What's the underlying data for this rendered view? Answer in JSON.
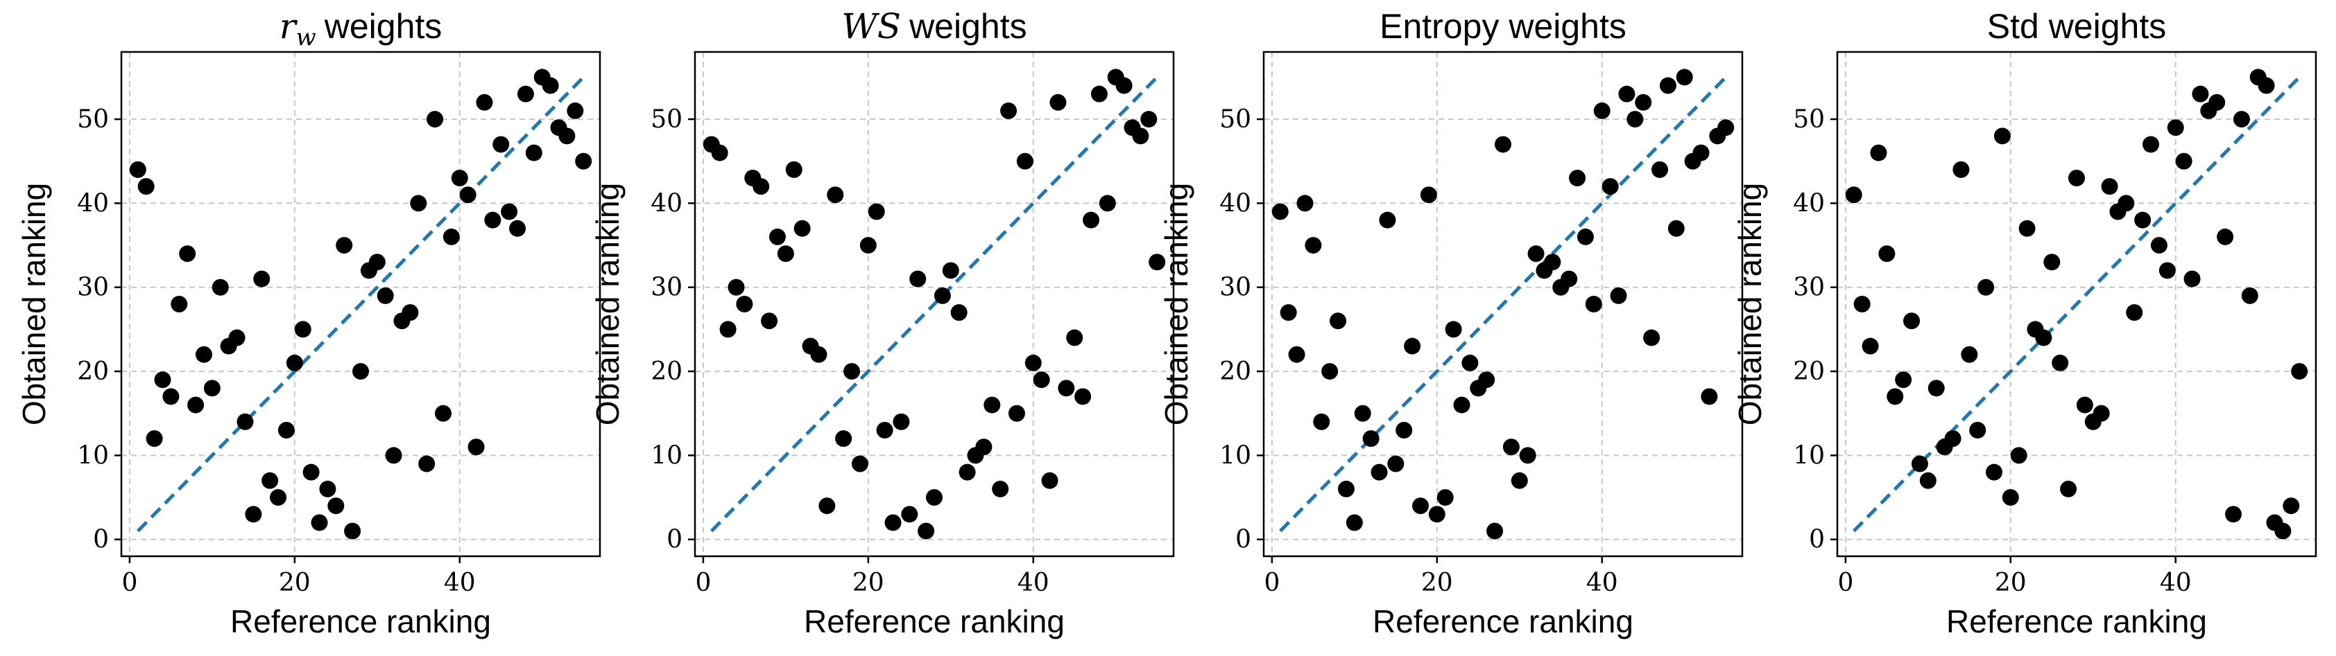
{
  "chart_data": [
    {
      "type": "scatter",
      "title": "weights",
      "title_math": "r",
      "title_math_sub": "w",
      "xlabel": "Reference ranking",
      "ylabel": "Obtained ranking",
      "xlim": [
        -1,
        57
      ],
      "ylim": [
        -2,
        58
      ],
      "xticks": [
        0,
        20,
        40
      ],
      "yticks": [
        0,
        10,
        20,
        30,
        40,
        50
      ],
      "reference_line": {
        "x": [
          1,
          55
        ],
        "y": [
          1,
          55
        ],
        "color": "#1f77b4",
        "style": "dashed"
      },
      "points": [
        {
          "x": 1,
          "y": 44
        },
        {
          "x": 2,
          "y": 42
        },
        {
          "x": 3,
          "y": 12
        },
        {
          "x": 4,
          "y": 19
        },
        {
          "x": 5,
          "y": 17
        },
        {
          "x": 6,
          "y": 28
        },
        {
          "x": 7,
          "y": 34
        },
        {
          "x": 8,
          "y": 16
        },
        {
          "x": 9,
          "y": 22
        },
        {
          "x": 10,
          "y": 18
        },
        {
          "x": 11,
          "y": 30
        },
        {
          "x": 12,
          "y": 23
        },
        {
          "x": 13,
          "y": 24
        },
        {
          "x": 14,
          "y": 14
        },
        {
          "x": 15,
          "y": 3
        },
        {
          "x": 16,
          "y": 31
        },
        {
          "x": 17,
          "y": 7
        },
        {
          "x": 18,
          "y": 5
        },
        {
          "x": 19,
          "y": 13
        },
        {
          "x": 20,
          "y": 21
        },
        {
          "x": 21,
          "y": 25
        },
        {
          "x": 22,
          "y": 8
        },
        {
          "x": 23,
          "y": 2
        },
        {
          "x": 24,
          "y": 6
        },
        {
          "x": 25,
          "y": 4
        },
        {
          "x": 26,
          "y": 35
        },
        {
          "x": 27,
          "y": 1
        },
        {
          "x": 28,
          "y": 20
        },
        {
          "x": 29,
          "y": 32
        },
        {
          "x": 30,
          "y": 33
        },
        {
          "x": 31,
          "y": 29
        },
        {
          "x": 32,
          "y": 10
        },
        {
          "x": 33,
          "y": 26
        },
        {
          "x": 34,
          "y": 27
        },
        {
          "x": 35,
          "y": 40
        },
        {
          "x": 36,
          "y": 9
        },
        {
          "x": 37,
          "y": 50
        },
        {
          "x": 38,
          "y": 15
        },
        {
          "x": 39,
          "y": 36
        },
        {
          "x": 40,
          "y": 43
        },
        {
          "x": 41,
          "y": 41
        },
        {
          "x": 42,
          "y": 11
        },
        {
          "x": 43,
          "y": 52
        },
        {
          "x": 44,
          "y": 38
        },
        {
          "x": 45,
          "y": 47
        },
        {
          "x": 46,
          "y": 39
        },
        {
          "x": 47,
          "y": 37
        },
        {
          "x": 48,
          "y": 53
        },
        {
          "x": 49,
          "y": 46
        },
        {
          "x": 50,
          "y": 55
        },
        {
          "x": 51,
          "y": 54
        },
        {
          "x": 52,
          "y": 49
        },
        {
          "x": 53,
          "y": 48
        },
        {
          "x": 54,
          "y": 51
        },
        {
          "x": 55,
          "y": 45
        }
      ]
    },
    {
      "type": "scatter",
      "title": "weights",
      "title_math": "WS",
      "title_math_sub": "",
      "xlabel": "Reference ranking",
      "ylabel": "Obtained ranking",
      "xlim": [
        -1,
        57
      ],
      "ylim": [
        -2,
        58
      ],
      "xticks": [
        0,
        20,
        40
      ],
      "yticks": [
        0,
        10,
        20,
        30,
        40,
        50
      ],
      "reference_line": {
        "x": [
          1,
          55
        ],
        "y": [
          1,
          55
        ],
        "color": "#1f77b4",
        "style": "dashed"
      },
      "points": [
        {
          "x": 1,
          "y": 47
        },
        {
          "x": 2,
          "y": 46
        },
        {
          "x": 3,
          "y": 25
        },
        {
          "x": 4,
          "y": 30
        },
        {
          "x": 5,
          "y": 28
        },
        {
          "x": 6,
          "y": 43
        },
        {
          "x": 7,
          "y": 42
        },
        {
          "x": 8,
          "y": 26
        },
        {
          "x": 9,
          "y": 36
        },
        {
          "x": 10,
          "y": 34
        },
        {
          "x": 11,
          "y": 44
        },
        {
          "x": 12,
          "y": 37
        },
        {
          "x": 13,
          "y": 23
        },
        {
          "x": 14,
          "y": 22
        },
        {
          "x": 15,
          "y": 4
        },
        {
          "x": 16,
          "y": 41
        },
        {
          "x": 17,
          "y": 12
        },
        {
          "x": 18,
          "y": 20
        },
        {
          "x": 19,
          "y": 9
        },
        {
          "x": 20,
          "y": 35
        },
        {
          "x": 21,
          "y": 39
        },
        {
          "x": 22,
          "y": 13
        },
        {
          "x": 23,
          "y": 2
        },
        {
          "x": 24,
          "y": 14
        },
        {
          "x": 25,
          "y": 3
        },
        {
          "x": 26,
          "y": 31
        },
        {
          "x": 27,
          "y": 1
        },
        {
          "x": 28,
          "y": 5
        },
        {
          "x": 29,
          "y": 29
        },
        {
          "x": 30,
          "y": 32
        },
        {
          "x": 31,
          "y": 27
        },
        {
          "x": 32,
          "y": 8
        },
        {
          "x": 33,
          "y": 10
        },
        {
          "x": 34,
          "y": 11
        },
        {
          "x": 35,
          "y": 16
        },
        {
          "x": 36,
          "y": 6
        },
        {
          "x": 37,
          "y": 51
        },
        {
          "x": 38,
          "y": 15
        },
        {
          "x": 39,
          "y": 45
        },
        {
          "x": 40,
          "y": 21
        },
        {
          "x": 41,
          "y": 19
        },
        {
          "x": 42,
          "y": 7
        },
        {
          "x": 43,
          "y": 52
        },
        {
          "x": 44,
          "y": 18
        },
        {
          "x": 45,
          "y": 24
        },
        {
          "x": 46,
          "y": 17
        },
        {
          "x": 47,
          "y": 38
        },
        {
          "x": 48,
          "y": 53
        },
        {
          "x": 49,
          "y": 40
        },
        {
          "x": 50,
          "y": 55
        },
        {
          "x": 51,
          "y": 54
        },
        {
          "x": 52,
          "y": 49
        },
        {
          "x": 53,
          "y": 48
        },
        {
          "x": 54,
          "y": 50
        },
        {
          "x": 55,
          "y": 33
        }
      ]
    },
    {
      "type": "scatter",
      "title": "Entropy weights",
      "title_math": "",
      "title_math_sub": "",
      "xlabel": "Reference ranking",
      "ylabel": "Obtained ranking",
      "xlim": [
        -1,
        57
      ],
      "ylim": [
        -2,
        58
      ],
      "xticks": [
        0,
        20,
        40
      ],
      "yticks": [
        0,
        10,
        20,
        30,
        40,
        50
      ],
      "reference_line": {
        "x": [
          1,
          55
        ],
        "y": [
          1,
          55
        ],
        "color": "#1f77b4",
        "style": "dashed"
      },
      "points": [
        {
          "x": 1,
          "y": 39
        },
        {
          "x": 2,
          "y": 27
        },
        {
          "x": 3,
          "y": 22
        },
        {
          "x": 4,
          "y": 40
        },
        {
          "x": 5,
          "y": 35
        },
        {
          "x": 6,
          "y": 14
        },
        {
          "x": 7,
          "y": 20
        },
        {
          "x": 8,
          "y": 26
        },
        {
          "x": 9,
          "y": 6
        },
        {
          "x": 10,
          "y": 2
        },
        {
          "x": 11,
          "y": 15
        },
        {
          "x": 12,
          "y": 12
        },
        {
          "x": 13,
          "y": 8
        },
        {
          "x": 14,
          "y": 38
        },
        {
          "x": 15,
          "y": 9
        },
        {
          "x": 16,
          "y": 13
        },
        {
          "x": 17,
          "y": 23
        },
        {
          "x": 18,
          "y": 4
        },
        {
          "x": 19,
          "y": 41
        },
        {
          "x": 20,
          "y": 3
        },
        {
          "x": 21,
          "y": 5
        },
        {
          "x": 22,
          "y": 25
        },
        {
          "x": 23,
          "y": 16
        },
        {
          "x": 24,
          "y": 21
        },
        {
          "x": 25,
          "y": 18
        },
        {
          "x": 26,
          "y": 19
        },
        {
          "x": 27,
          "y": 1
        },
        {
          "x": 28,
          "y": 47
        },
        {
          "x": 29,
          "y": 11
        },
        {
          "x": 30,
          "y": 7
        },
        {
          "x": 31,
          "y": 10
        },
        {
          "x": 32,
          "y": 34
        },
        {
          "x": 33,
          "y": 32
        },
        {
          "x": 34,
          "y": 33
        },
        {
          "x": 35,
          "y": 30
        },
        {
          "x": 36,
          "y": 31
        },
        {
          "x": 37,
          "y": 43
        },
        {
          "x": 38,
          "y": 36
        },
        {
          "x": 39,
          "y": 28
        },
        {
          "x": 40,
          "y": 51
        },
        {
          "x": 41,
          "y": 42
        },
        {
          "x": 42,
          "y": 29
        },
        {
          "x": 43,
          "y": 53
        },
        {
          "x": 44,
          "y": 50
        },
        {
          "x": 45,
          "y": 52
        },
        {
          "x": 46,
          "y": 24
        },
        {
          "x": 47,
          "y": 44
        },
        {
          "x": 48,
          "y": 54
        },
        {
          "x": 49,
          "y": 37
        },
        {
          "x": 50,
          "y": 55
        },
        {
          "x": 51,
          "y": 45
        },
        {
          "x": 52,
          "y": 46
        },
        {
          "x": 53,
          "y": 17
        },
        {
          "x": 54,
          "y": 48
        },
        {
          "x": 55,
          "y": 49
        }
      ]
    },
    {
      "type": "scatter",
      "title": "Std weights",
      "title_math": "",
      "title_math_sub": "",
      "xlabel": "Reference ranking",
      "ylabel": "Obtained ranking",
      "xlim": [
        -1,
        57
      ],
      "ylim": [
        -2,
        58
      ],
      "xticks": [
        0,
        20,
        40
      ],
      "yticks": [
        0,
        10,
        20,
        30,
        40,
        50
      ],
      "reference_line": {
        "x": [
          1,
          55
        ],
        "y": [
          1,
          55
        ],
        "color": "#1f77b4",
        "style": "dashed"
      },
      "points": [
        {
          "x": 1,
          "y": 41
        },
        {
          "x": 2,
          "y": 28
        },
        {
          "x": 3,
          "y": 23
        },
        {
          "x": 4,
          "y": 46
        },
        {
          "x": 5,
          "y": 34
        },
        {
          "x": 6,
          "y": 17
        },
        {
          "x": 7,
          "y": 19
        },
        {
          "x": 8,
          "y": 26
        },
        {
          "x": 9,
          "y": 9
        },
        {
          "x": 10,
          "y": 7
        },
        {
          "x": 11,
          "y": 18
        },
        {
          "x": 12,
          "y": 11
        },
        {
          "x": 13,
          "y": 12
        },
        {
          "x": 14,
          "y": 44
        },
        {
          "x": 15,
          "y": 22
        },
        {
          "x": 16,
          "y": 13
        },
        {
          "x": 17,
          "y": 30
        },
        {
          "x": 18,
          "y": 8
        },
        {
          "x": 19,
          "y": 48
        },
        {
          "x": 20,
          "y": 5
        },
        {
          "x": 21,
          "y": 10
        },
        {
          "x": 22,
          "y": 37
        },
        {
          "x": 23,
          "y": 25
        },
        {
          "x": 24,
          "y": 24
        },
        {
          "x": 25,
          "y": 33
        },
        {
          "x": 26,
          "y": 21
        },
        {
          "x": 27,
          "y": 6
        },
        {
          "x": 28,
          "y": 43
        },
        {
          "x": 29,
          "y": 16
        },
        {
          "x": 30,
          "y": 14
        },
        {
          "x": 31,
          "y": 15
        },
        {
          "x": 32,
          "y": 42
        },
        {
          "x": 33,
          "y": 39
        },
        {
          "x": 34,
          "y": 40
        },
        {
          "x": 35,
          "y": 27
        },
        {
          "x": 36,
          "y": 38
        },
        {
          "x": 37,
          "y": 47
        },
        {
          "x": 38,
          "y": 35
        },
        {
          "x": 39,
          "y": 32
        },
        {
          "x": 40,
          "y": 49
        },
        {
          "x": 41,
          "y": 45
        },
        {
          "x": 42,
          "y": 31
        },
        {
          "x": 43,
          "y": 53
        },
        {
          "x": 44,
          "y": 51
        },
        {
          "x": 45,
          "y": 52
        },
        {
          "x": 46,
          "y": 36
        },
        {
          "x": 47,
          "y": 3
        },
        {
          "x": 48,
          "y": 50
        },
        {
          "x": 49,
          "y": 29
        },
        {
          "x": 50,
          "y": 55
        },
        {
          "x": 51,
          "y": 54
        },
        {
          "x": 52,
          "y": 2
        },
        {
          "x": 53,
          "y": 1
        },
        {
          "x": 54,
          "y": 4
        },
        {
          "x": 55,
          "y": 20
        }
      ]
    }
  ]
}
